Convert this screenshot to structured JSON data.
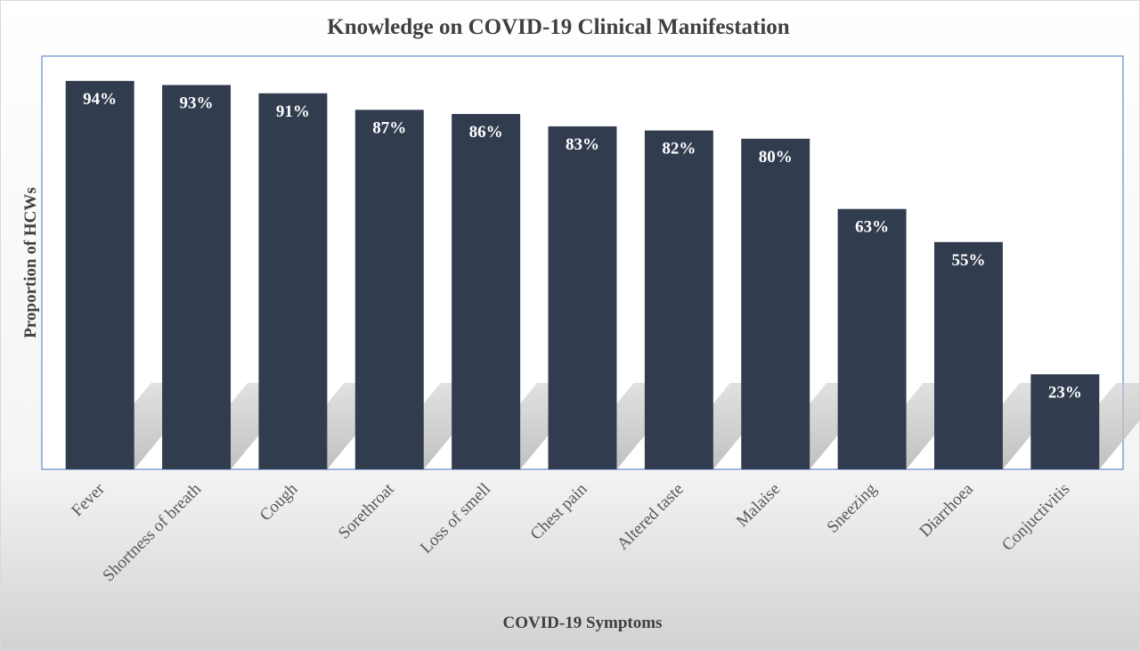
{
  "chart_data": {
    "type": "bar",
    "title": "Knowledge on COVID-19 Clinical Manifestation",
    "xlabel": "COVID-19 Symptoms",
    "ylabel": "Proportion of HCWs",
    "categories": [
      "Fever",
      "Shortness of breath",
      "Cough",
      "Sorethroat",
      "Loss of smell",
      "Chest pain",
      "Altered taste",
      "Malaise",
      "Sneezing",
      "Diarrhoea",
      "Conjuctivitis"
    ],
    "values": [
      94,
      93,
      91,
      87,
      86,
      83,
      82,
      80,
      63,
      55,
      23
    ],
    "data_labels": [
      "94%",
      "93%",
      "91%",
      "87%",
      "86%",
      "83%",
      "82%",
      "80%",
      "63%",
      "55%",
      "23%"
    ],
    "ylim": [
      0,
      100
    ],
    "grid": false,
    "legend": "none",
    "colors": {
      "bar": "#323c4f",
      "plot_border": "#4472c4",
      "title": "#404040",
      "tick": "#595959"
    }
  }
}
